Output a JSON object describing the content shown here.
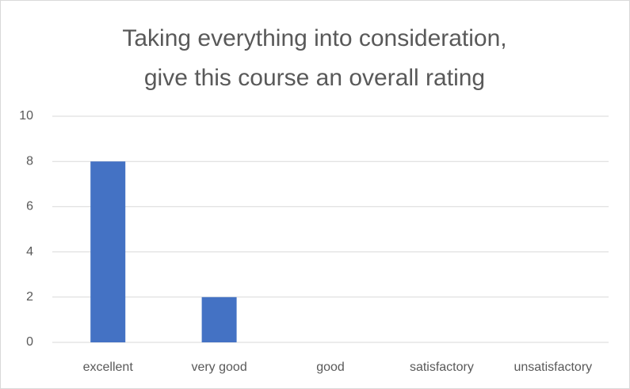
{
  "chart_data": {
    "type": "bar",
    "title": [
      "Taking everything into consideration,",
      "give this course an overall rating"
    ],
    "categories": [
      "excellent",
      "very good",
      "good",
      "satisfactory",
      "unsatisfactory"
    ],
    "values": [
      8,
      2,
      0,
      0,
      0
    ],
    "color": "#4472c4",
    "ylim": [
      0,
      10
    ],
    "yticks": [
      0,
      2,
      4,
      6,
      8,
      10
    ],
    "grid": true
  }
}
